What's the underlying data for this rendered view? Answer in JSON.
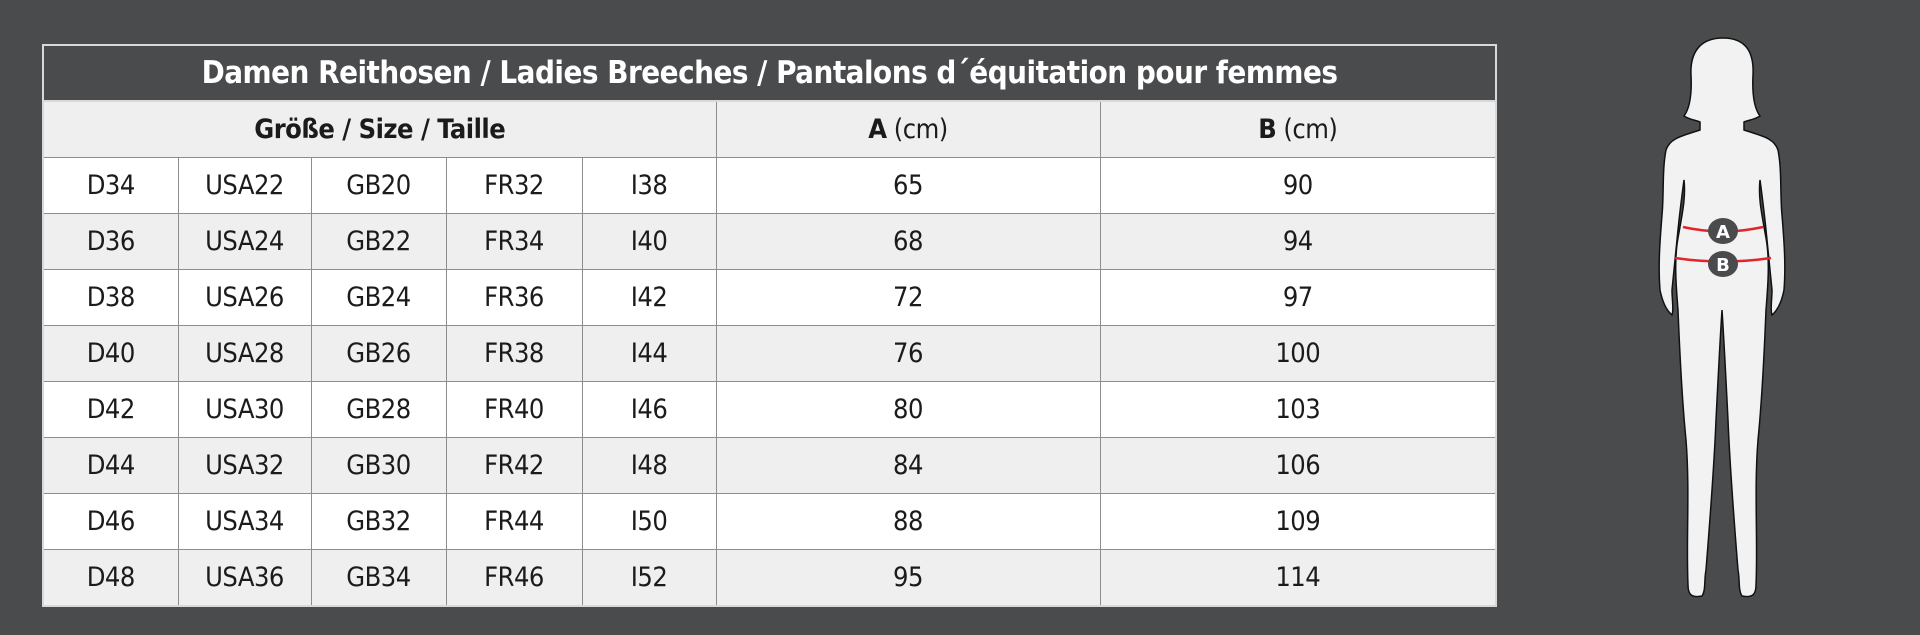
{
  "title": "Damen Reithosen / Ladies Breeches / Pantalons d´équitation pour femmes",
  "headers": {
    "size": "Größe / Size / Taille",
    "a_letter": "A",
    "a_unit": "(cm)",
    "b_letter": "B",
    "b_unit": "(cm)"
  },
  "rows": [
    [
      "D34",
      "USA22",
      "GB20",
      "FR32",
      "I38",
      "65",
      "90"
    ],
    [
      "D36",
      "USA24",
      "GB22",
      "FR34",
      "I40",
      "68",
      "94"
    ],
    [
      "D38",
      "USA26",
      "GB24",
      "FR36",
      "I42",
      "72",
      "97"
    ],
    [
      "D40",
      "USA28",
      "GB26",
      "FR38",
      "I44",
      "76",
      "100"
    ],
    [
      "D42",
      "USA30",
      "GB28",
      "FR40",
      "I46",
      "80",
      "103"
    ],
    [
      "D44",
      "USA32",
      "GB30",
      "FR42",
      "I48",
      "84",
      "106"
    ],
    [
      "D46",
      "USA34",
      "GB32",
      "FR44",
      "I50",
      "88",
      "109"
    ],
    [
      "D48",
      "USA36",
      "GB34",
      "FR46",
      "I52",
      "95",
      "114"
    ]
  ],
  "figure": {
    "marker_a": "A",
    "marker_b": "B",
    "line_color": "#e0262b",
    "marker_color": "#4a4b4d"
  }
}
